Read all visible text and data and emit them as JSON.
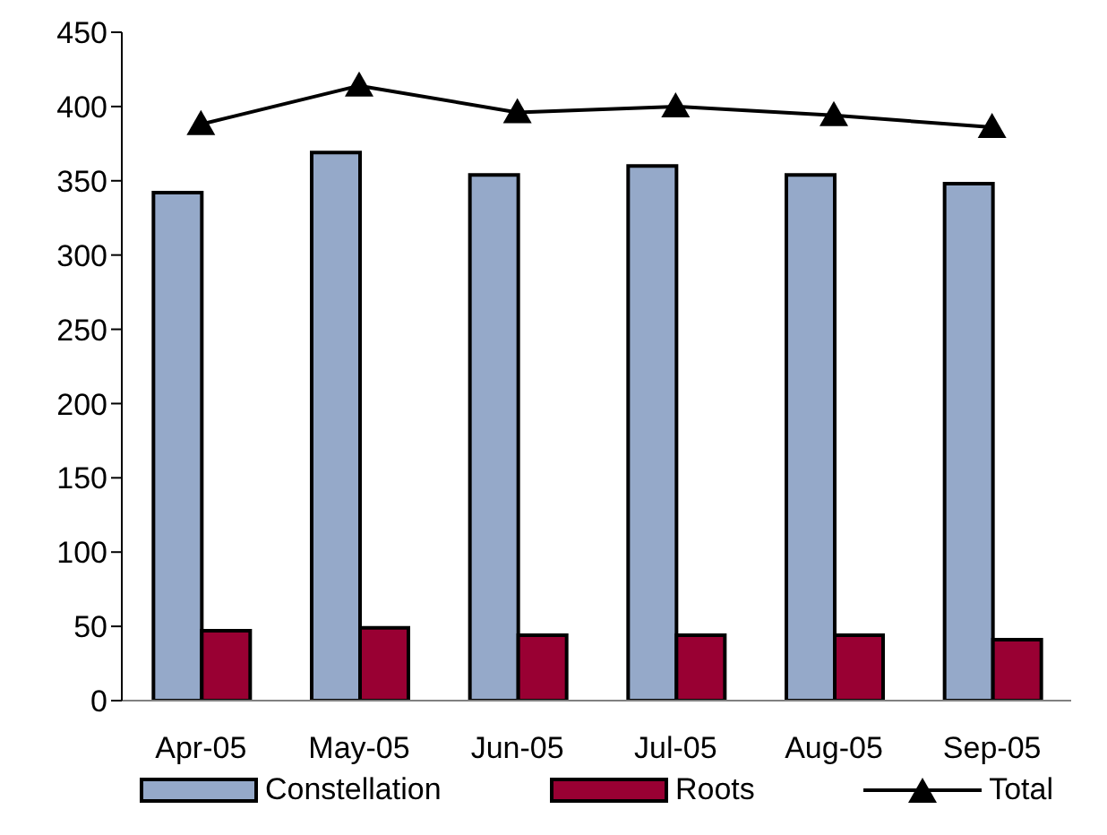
{
  "chart_data": {
    "type": "bar",
    "categories": [
      "Apr-05",
      "May-05",
      "Jun-05",
      "Jul-05",
      "Aug-05",
      "Sep-05"
    ],
    "series": [
      {
        "name": "Constellation",
        "color": "#95a9c9",
        "values": [
          342,
          369,
          354,
          360,
          354,
          348
        ]
      },
      {
        "name": "Roots",
        "color": "#990033",
        "values": [
          47,
          49,
          44,
          44,
          44,
          41
        ]
      },
      {
        "name": "Total",
        "type": "line",
        "color": "#000000",
        "marker": "triangle",
        "values": [
          388,
          414,
          396,
          400,
          394,
          386
        ]
      }
    ],
    "ylim": [
      0,
      450
    ],
    "yticks": [
      0,
      50,
      100,
      150,
      200,
      250,
      300,
      350,
      400,
      450
    ],
    "grid": false,
    "legend": "bottom"
  }
}
